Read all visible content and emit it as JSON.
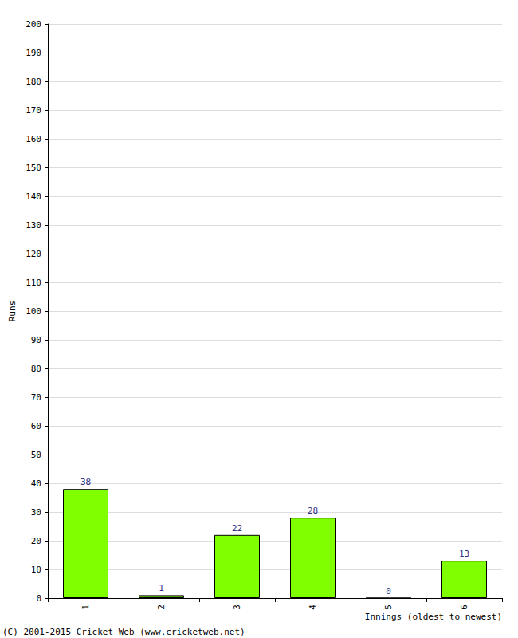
{
  "chart_data": {
    "type": "bar",
    "categories": [
      "1",
      "2",
      "3",
      "4",
      "5",
      "6"
    ],
    "values": [
      38,
      1,
      22,
      28,
      0,
      13
    ],
    "color": "#80ff00",
    "x_label": "Innings (oldest to newest)",
    "y_label": "Runs",
    "annotations": [
      "(C) 2001-2015 Cricket Web (www.cricketweb.net)"
    ],
    "ylim": [
      0,
      200
    ],
    "yticks": [
      0,
      10,
      20,
      30,
      40,
      50,
      60,
      70,
      80,
      90,
      100,
      110,
      120,
      130,
      140,
      150,
      160,
      170,
      180,
      190,
      200
    ],
    "grid": true,
    "data_labels": true
  }
}
